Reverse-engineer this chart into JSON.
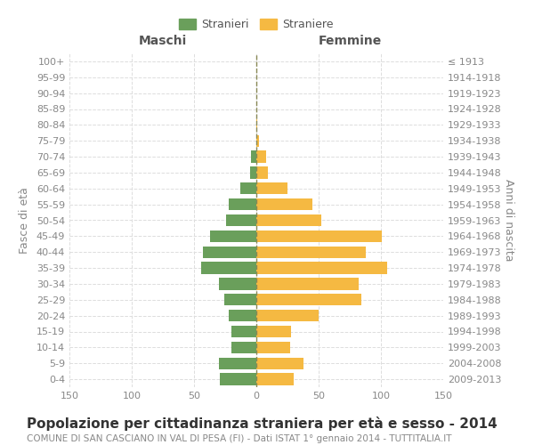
{
  "age_groups": [
    "0-4",
    "5-9",
    "10-14",
    "15-19",
    "20-24",
    "25-29",
    "30-34",
    "35-39",
    "40-44",
    "45-49",
    "50-54",
    "55-59",
    "60-64",
    "65-69",
    "70-74",
    "75-79",
    "80-84",
    "85-89",
    "90-94",
    "95-99",
    "100+"
  ],
  "birth_years": [
    "2009-2013",
    "2004-2008",
    "1999-2003",
    "1994-1998",
    "1989-1993",
    "1984-1988",
    "1979-1983",
    "1974-1978",
    "1969-1973",
    "1964-1968",
    "1959-1963",
    "1954-1958",
    "1949-1953",
    "1944-1948",
    "1939-1943",
    "1934-1938",
    "1929-1933",
    "1924-1928",
    "1919-1923",
    "1914-1918",
    "≤ 1913"
  ],
  "males": [
    29,
    30,
    20,
    20,
    22,
    26,
    30,
    44,
    43,
    37,
    24,
    22,
    13,
    5,
    4,
    0,
    0,
    0,
    0,
    0,
    0
  ],
  "females": [
    30,
    38,
    27,
    28,
    50,
    84,
    82,
    105,
    88,
    101,
    52,
    45,
    25,
    9,
    8,
    2,
    1,
    0,
    0,
    0,
    0
  ],
  "color_males": "#6a9f5b",
  "color_females": "#f5b942",
  "title": "Popolazione per cittadinanza straniera per età e sesso - 2014",
  "subtitle": "COMUNE DI SAN CASCIANO IN VAL DI PESA (FI) - Dati ISTAT 1° gennaio 2014 - TUTTITALIA.IT",
  "ylabel_left": "Fasce di età",
  "ylabel_right": "Anni di nascita",
  "xlabel_left": "Maschi",
  "xlabel_right": "Femmine",
  "legend_males": "Stranieri",
  "legend_females": "Straniere",
  "xlim": 150,
  "background_color": "#ffffff",
  "grid_color": "#dddddd",
  "title_fontsize": 11,
  "subtitle_fontsize": 7.5,
  "axis_label_fontsize": 9,
  "tick_fontsize": 8
}
